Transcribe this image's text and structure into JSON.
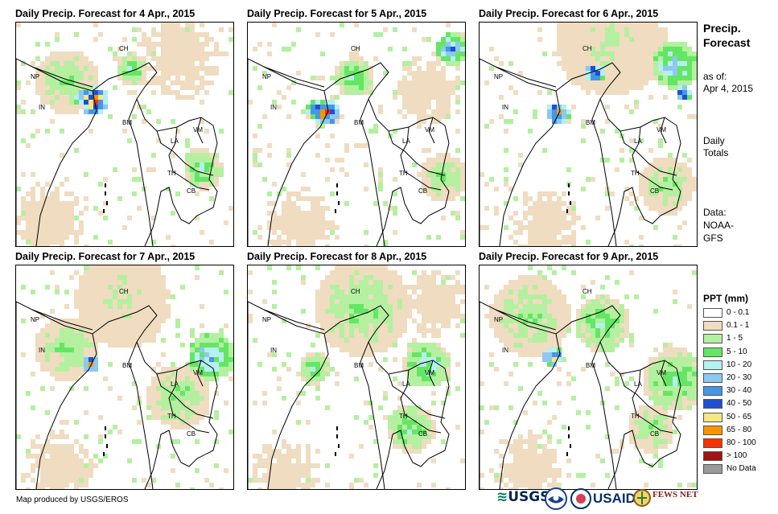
{
  "panels": [
    {
      "title": "Daily Precip. Forecast for 4 Apr., 2015"
    },
    {
      "title": "Daily Precip. Forecast for 5 Apr., 2015"
    },
    {
      "title": "Daily Precip. Forecast for 6 Apr., 2015"
    },
    {
      "title": "Daily Precip. Forecast for 7 Apr., 2015"
    },
    {
      "title": "Daily Precip. Forecast for 8 Apr., 2015"
    },
    {
      "title": "Daily Precip. Forecast for 9 Apr., 2015"
    }
  ],
  "country_labels": [
    "CH",
    "NP",
    "IN",
    "BM",
    "LA",
    "VM",
    "TH",
    "CB"
  ],
  "sidebar": {
    "title_line1": "Precip.",
    "title_line2": "Forecast",
    "asof_line1": "as of:",
    "asof_line2": "Apr 4, 2015",
    "totals_line1": "Daily",
    "totals_line2": "Totals",
    "data_line1": "Data:",
    "data_line2": "NOAA-",
    "data_line3": "GFS"
  },
  "legend": {
    "title": "PPT (mm)",
    "items": [
      {
        "label": "0 - 0.1",
        "color": "#ffffff"
      },
      {
        "label": "0.1 - 1",
        "color": "#f0dcc0"
      },
      {
        "label": "1 - 5",
        "color": "#b4f0a0"
      },
      {
        "label": "5 - 10",
        "color": "#64e664"
      },
      {
        "label": "10 - 20",
        "color": "#b4f0f0"
      },
      {
        "label": "20 - 30",
        "color": "#8cc8f0"
      },
      {
        "label": "30 - 40",
        "color": "#4696e6"
      },
      {
        "label": "40 - 50",
        "color": "#1e50d2"
      },
      {
        "label": "50 - 65",
        "color": "#f5e682"
      },
      {
        "label": "65 - 80",
        "color": "#f59600"
      },
      {
        "label": "80 - 100",
        "color": "#fa3200"
      },
      {
        "label": "> 100",
        "color": "#a01414"
      },
      {
        "label": "No Data",
        "color": "#9a9a9a"
      }
    ]
  },
  "credit": "Map produced by USGS/EROS",
  "logos": {
    "usgs": "USGS",
    "usaid": "USAID",
    "fewsnet": "FEWS NET"
  }
}
